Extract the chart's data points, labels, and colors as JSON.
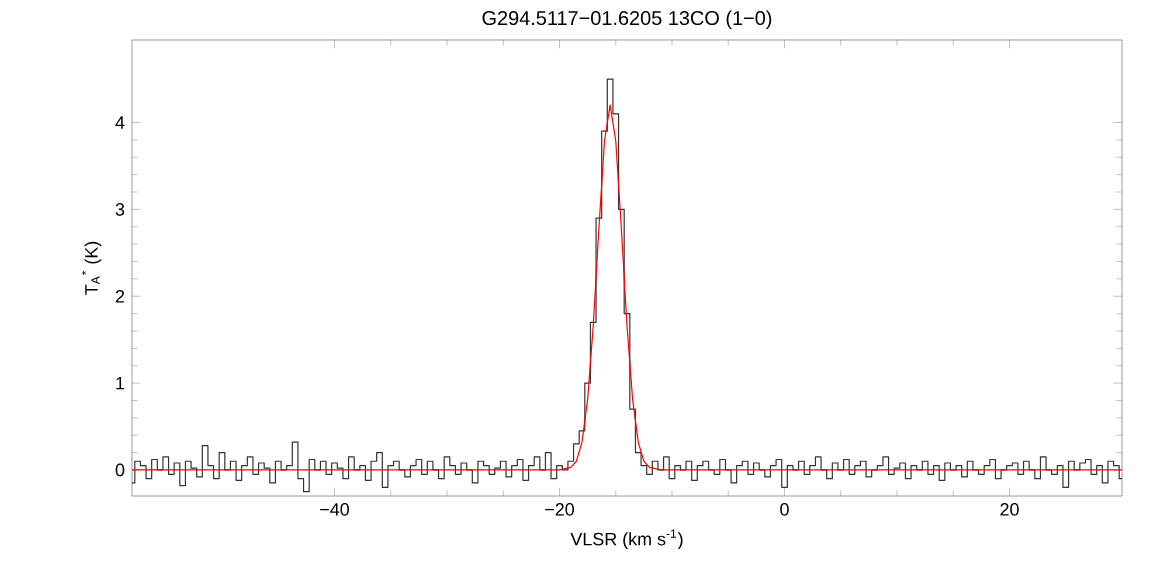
{
  "chart_data": {
    "type": "step",
    "title": "G294.5117−01.6205 13CO (1−0)",
    "xlabel": "VLSR (km s$^{-1}$)",
    "ylabel": "T$_{A}$$^{*}$ (K)",
    "xlim": [
      -58,
      30
    ],
    "ylim": [
      -0.3,
      4.95
    ],
    "xticks": [
      {
        "value": -40,
        "label": "−40"
      },
      {
        "value": -20,
        "label": "−20"
      },
      0,
      20
    ],
    "yticks": [
      0,
      1,
      2,
      3,
      4
    ],
    "series": [
      {
        "color": "#333333",
        "x": [
          -58,
          -57.5,
          -57,
          -56.5,
          -56,
          -55.5,
          -55,
          -54.5,
          -54,
          -53.5,
          -53,
          -52.5,
          -52,
          -51.5,
          -51,
          -50.5,
          -50,
          -49.5,
          -49,
          -48.5,
          -48,
          -47.5,
          -47,
          -46.5,
          -46,
          -45.5,
          -45,
          -44.5,
          -44,
          -43.5,
          -43,
          -42.5,
          -42,
          -41.5,
          -41,
          -40.5,
          -40,
          -39.5,
          -39,
          -38.5,
          -38,
          -37.5,
          -37,
          -36.5,
          -36,
          -35.5,
          -35,
          -34.5,
          -34,
          -33.5,
          -33,
          -32.5,
          -32,
          -31.5,
          -31,
          -30.5,
          -30,
          -29.5,
          -29,
          -28.5,
          -28,
          -27.5,
          -27,
          -26.5,
          -26,
          -25.5,
          -25,
          -24.5,
          -24,
          -23.5,
          -23,
          -22.5,
          -22,
          -21.5,
          -21,
          -20.5,
          -20,
          -19.5,
          -19,
          -18.5,
          -18,
          -17.5,
          -17,
          -16.5,
          -16,
          -15.5,
          -15,
          -14.5,
          -14,
          -13.5,
          -13,
          -12.5,
          -12,
          -11.5,
          -11,
          -10.5,
          -10,
          -9.5,
          -9,
          -8.5,
          -8,
          -7.5,
          -7,
          -6.5,
          -6,
          -5.5,
          -5,
          -4.5,
          -4,
          -3.5,
          -3,
          -2.5,
          -2,
          -1.5,
          -1,
          -0.5,
          0,
          0.5,
          1,
          1.5,
          2,
          2.5,
          3,
          3.5,
          4,
          4.5,
          5,
          5.5,
          6,
          6.5,
          7,
          7.5,
          8,
          8.5,
          9,
          9.5,
          10,
          10.5,
          11,
          11.5,
          12,
          12.5,
          13,
          13.5,
          14,
          14.5,
          15,
          15.5,
          16,
          16.5,
          17,
          17.5,
          18,
          18.5,
          19,
          19.5,
          20,
          20.5,
          21,
          21.5,
          22,
          22.5,
          23,
          23.5,
          24,
          24.5,
          25,
          25.5,
          26,
          26.5,
          27,
          27.5,
          28,
          28.5,
          29,
          29.5,
          30
        ],
        "values": [
          -0.15,
          0.1,
          0.05,
          -0.1,
          0.12,
          0.0,
          0.15,
          -0.05,
          0.08,
          -0.18,
          0.1,
          0.02,
          -0.08,
          0.28,
          0.05,
          -0.1,
          0.2,
          0.0,
          0.1,
          -0.12,
          0.05,
          0.15,
          -0.05,
          0.08,
          0.02,
          -0.15,
          0.1,
          0.0,
          0.05,
          0.32,
          -0.1,
          -0.25,
          0.12,
          0.0,
          0.1,
          -0.05,
          0.08,
          0.02,
          -0.1,
          0.15,
          0.0,
          0.05,
          -0.12,
          0.1,
          0.2,
          -0.2,
          0.05,
          0.1,
          0.0,
          -0.08,
          0.05,
          0.12,
          -0.05,
          0.1,
          0.0,
          -0.1,
          0.15,
          0.05,
          -0.05,
          0.08,
          0.0,
          -0.15,
          0.1,
          0.05,
          -0.05,
          0.02,
          0.1,
          -0.08,
          0.05,
          0.12,
          -0.12,
          0.05,
          0.15,
          0.0,
          0.2,
          -0.1,
          0.05,
          0.0,
          0.1,
          0.3,
          0.45,
          1.0,
          1.7,
          2.9,
          3.9,
          4.5,
          4.1,
          3.0,
          1.8,
          0.7,
          0.2,
          0.05,
          -0.05,
          0.1,
          0.0,
          0.15,
          -0.1,
          0.05,
          0.0,
          0.1,
          -0.12,
          0.05,
          0.1,
          0.0,
          -0.05,
          0.12,
          0.0,
          -0.15,
          0.05,
          0.1,
          -0.05,
          0.08,
          0.0,
          -0.08,
          0.05,
          0.12,
          -0.2,
          0.05,
          0.0,
          0.1,
          -0.05,
          0.05,
          0.15,
          0.0,
          -0.1,
          0.08,
          0.0,
          0.12,
          -0.05,
          0.05,
          0.1,
          -0.08,
          0.0,
          0.05,
          0.15,
          -0.05,
          0.02,
          0.08,
          -0.1,
          0.05,
          0.0,
          0.1,
          -0.05,
          0.05,
          -0.12,
          0.08,
          0.0,
          0.05,
          -0.08,
          0.1,
          0.0,
          -0.05,
          0.05,
          0.12,
          -0.1,
          0.0,
          0.05,
          0.08,
          -0.05,
          0.1,
          0.0,
          -0.1,
          0.15,
          0.0,
          -0.05,
          0.05,
          -0.2,
          0.1,
          0.0,
          0.08,
          0.12,
          -0.05,
          0.05,
          -0.15,
          0.1,
          0.05,
          -0.1
        ]
      },
      {
        "type": "line",
        "color": "#ff0000",
        "x": [
          -58,
          -40,
          -25,
          -20,
          -19,
          -18.5,
          -18,
          -17.5,
          -17,
          -16.5,
          -16,
          -15.5,
          -15,
          -14.5,
          -14,
          -13.5,
          -13,
          -12.5,
          -12,
          -11,
          0,
          15,
          30
        ],
        "values": [
          0,
          0,
          0,
          0,
          0.03,
          0.1,
          0.32,
          0.81,
          1.66,
          2.78,
          3.79,
          4.2,
          3.79,
          2.78,
          1.66,
          0.81,
          0.32,
          0.1,
          0.03,
          0,
          0,
          0,
          0
        ]
      }
    ]
  }
}
